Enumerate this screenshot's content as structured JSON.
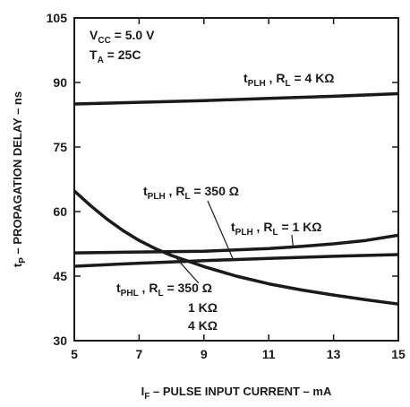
{
  "chart_data": {
    "type": "line",
    "xlabel": {
      "main": "I",
      "sub": "F",
      "rest": " – PULSE INPUT CURRENT – mA"
    },
    "ylabel": {
      "main": "t",
      "sub": "P",
      "rest": " – PROPAGATION DELAY – ns"
    },
    "xlim": [
      5,
      15
    ],
    "ylim": [
      30,
      105
    ],
    "x_ticks": [
      5,
      7,
      9,
      11,
      13,
      15
    ],
    "y_ticks": [
      30,
      45,
      60,
      75,
      90,
      105
    ],
    "grid": false,
    "conditions": [
      {
        "main": "V",
        "sub": "CC",
        "rest": " = 5.0 V"
      },
      {
        "main": "T",
        "sub": "A",
        "rest": " = 25C"
      }
    ],
    "colors": {
      "line": "#1a1a1a",
      "axis": "#1a1a1a"
    },
    "series": [
      {
        "x": [
          5,
          7,
          9,
          11,
          13,
          15
        ],
        "y": [
          85.0,
          85.4,
          85.8,
          86.3,
          86.8,
          87.4
        ],
        "label": {
          "main": "t",
          "sub": "PLH",
          "rest": " , R",
          "sub2": "L",
          "rest2": " = 4 KΩ"
        }
      },
      {
        "x": [
          5,
          7,
          9,
          11,
          12,
          13,
          14,
          15
        ],
        "y": [
          50.4,
          50.6,
          50.8,
          51.4,
          51.9,
          52.5,
          53.3,
          54.5
        ],
        "label": {
          "main": "t",
          "sub": "PLH",
          "rest": " , R",
          "sub2": "L",
          "rest2": " = 1 KΩ"
        }
      },
      {
        "x": [
          5,
          7,
          9,
          11,
          13,
          15
        ],
        "y": [
          47.3,
          48.0,
          48.6,
          49.1,
          49.6,
          50.0
        ],
        "label": {
          "main": "t",
          "sub": "PLH",
          "rest": " , R",
          "sub2": "L",
          "rest2": " = 350 Ω"
        }
      },
      {
        "x": [
          5,
          5.5,
          6,
          6.5,
          7,
          7.5,
          8,
          9,
          10,
          11,
          12,
          13,
          14,
          15
        ],
        "y": [
          64.8,
          61.4,
          58.3,
          55.6,
          53.3,
          51.4,
          49.8,
          47.2,
          45.0,
          43.2,
          41.8,
          40.6,
          39.5,
          38.5
        ],
        "label": {
          "main": "t",
          "sub": "PHL",
          "rest": " , R",
          "sub2": "L",
          "rest2": " = 350 Ω"
        },
        "extra_labels": [
          "1 KΩ",
          "4 KΩ"
        ]
      }
    ]
  }
}
